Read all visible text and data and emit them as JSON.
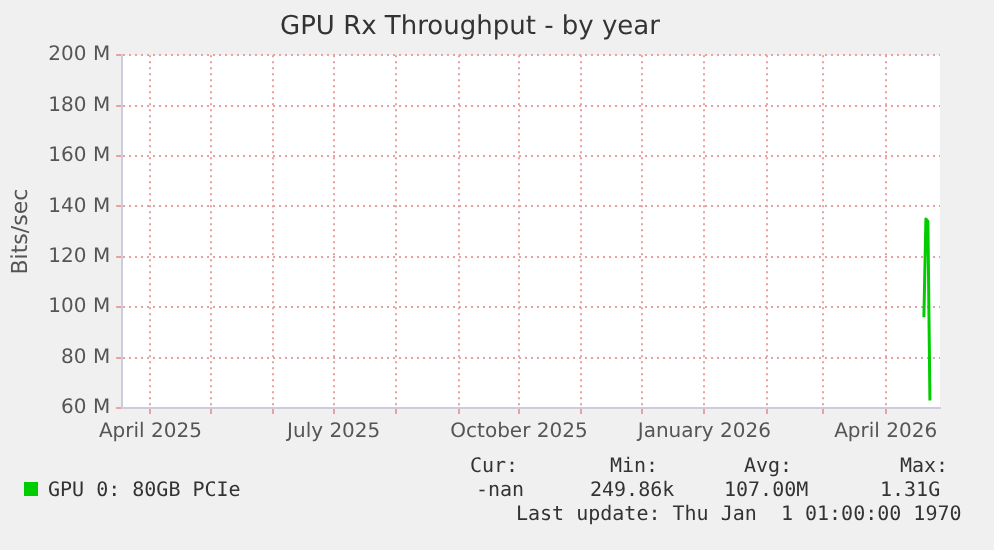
{
  "chart_data": {
    "type": "line",
    "title": "GPU Rx Throughput - by year",
    "ylabel": "Bits/sec",
    "x": [
      "2026-04-20",
      "2026-04-21",
      "2026-04-22",
      "2026-04-23"
    ],
    "series": [
      {
        "name": "GPU 0: 80GB PCIe",
        "color": "#00cc00",
        "values": [
          96000000,
          135000000,
          134000000,
          63000000
        ]
      }
    ],
    "xlim": [
      "2025-03-18",
      "2026-04-28"
    ],
    "xticks": [
      {
        "value": "2025-04-01",
        "label": "April 2025"
      },
      {
        "value": "2025-05-01",
        "label": null
      },
      {
        "value": "2025-06-01",
        "label": null
      },
      {
        "value": "2025-07-01",
        "label": "July 2025"
      },
      {
        "value": "2025-08-01",
        "label": null
      },
      {
        "value": "2025-09-01",
        "label": null
      },
      {
        "value": "2025-10-01",
        "label": "October 2025"
      },
      {
        "value": "2025-11-01",
        "label": null
      },
      {
        "value": "2025-12-01",
        "label": null
      },
      {
        "value": "2026-01-01",
        "label": "January 2026"
      },
      {
        "value": "2026-02-01",
        "label": null
      },
      {
        "value": "2026-03-01",
        "label": null
      },
      {
        "value": "2026-04-01",
        "label": "April 2026"
      }
    ],
    "ylim": [
      60000000,
      200000000
    ],
    "yticks": [
      {
        "value": 60000000,
        "label": "60 M"
      },
      {
        "value": 80000000,
        "label": "80 M"
      },
      {
        "value": 100000000,
        "label": "100 M"
      },
      {
        "value": 120000000,
        "label": "120 M"
      },
      {
        "value": 140000000,
        "label": "140 M"
      },
      {
        "value": 160000000,
        "label": "160 M"
      },
      {
        "value": 180000000,
        "label": "180 M"
      },
      {
        "value": 200000000,
        "label": "200 M"
      }
    ],
    "grid": true,
    "legend": "bottom",
    "marker": "none",
    "line_style": "solid",
    "annotations": [
      "Cur:",
      "Min:",
      "Avg:",
      "Max:",
      "-nan",
      "249.86k",
      "107.00M",
      "1.31G",
      "Last update: Thu Jan  1 01:00:00 1970"
    ]
  }
}
